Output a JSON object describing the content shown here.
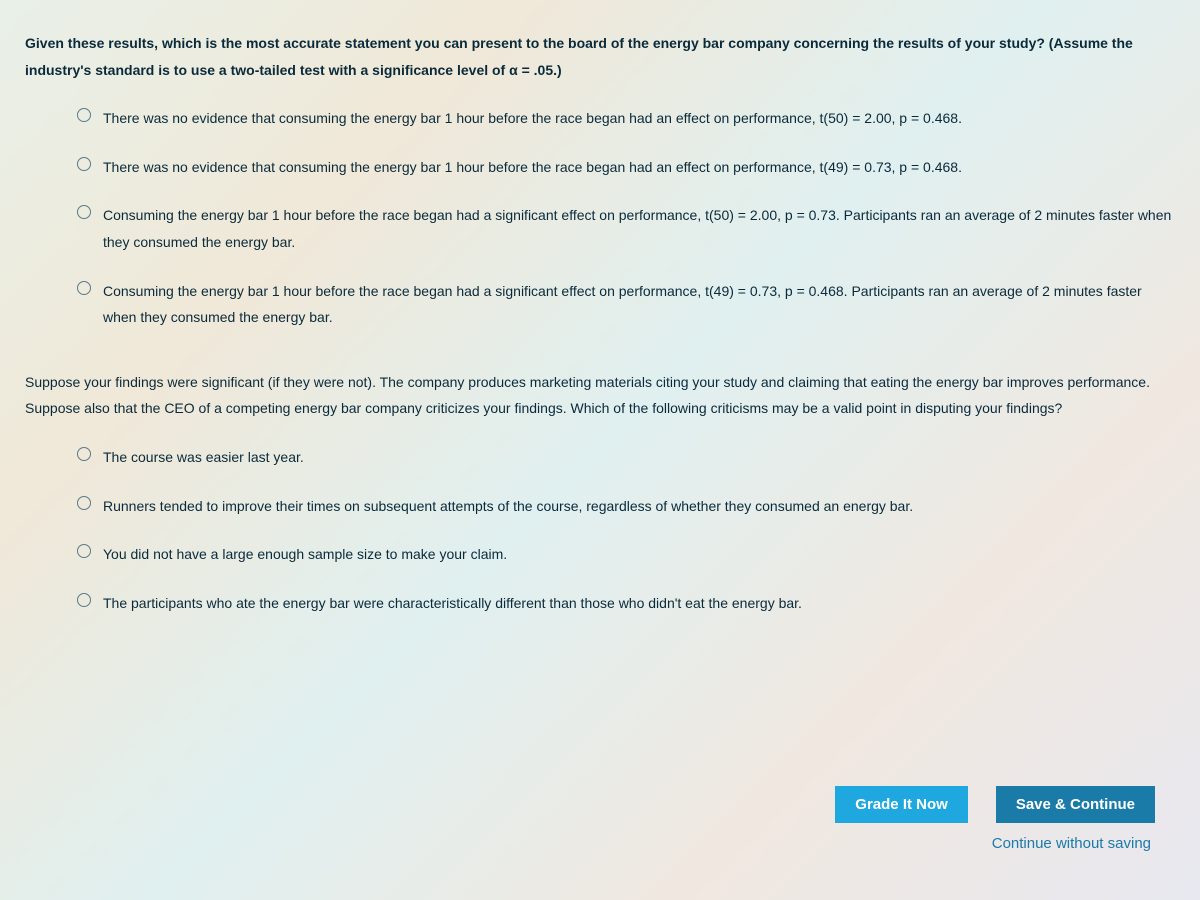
{
  "questions": [
    {
      "prompt": "Given these results, which is the most accurate statement you can present to the board of the energy bar company concerning the results of your study? (Assume the industry's standard is to use a two-tailed test with a significance level of α = .05.)",
      "options": [
        "There was no evidence that consuming the energy bar 1 hour before the race began had an effect on performance, t(50) = 2.00, p = 0.468.",
        "There was no evidence that consuming the energy bar 1 hour before the race began had an effect on performance, t(49) = 0.73, p = 0.468.",
        "Consuming the energy bar 1 hour before the race began had a significant effect on performance, t(50) = 2.00, p = 0.73. Participants ran an average of 2 minutes faster when they consumed the energy bar.",
        "Consuming the energy bar 1 hour before the race began had a significant effect on performance, t(49) = 0.73, p = 0.468. Participants ran an average of 2 minutes faster when they consumed the energy bar."
      ]
    },
    {
      "prompt": "Suppose your findings were significant (if they were not). The company produces marketing materials citing your study and claiming that eating the energy bar improves performance. Suppose also that the CEO of a competing energy bar company criticizes your findings. Which of the following criticisms may be a valid point in disputing your findings?",
      "options": [
        "The course was easier last year.",
        "Runners tended to improve their times on subsequent attempts of the course, regardless of whether they consumed an energy bar.",
        "You did not have a large enough sample size to make your claim.",
        "The participants who ate the energy bar were characteristically different than those who didn't eat the energy bar."
      ]
    }
  ],
  "buttons": {
    "grade": "Grade It Now",
    "save": "Save & Continue",
    "continue_link": "Continue without saving"
  },
  "colors": {
    "text": "#0a2a3a",
    "btn_primary": "#1fa8e0",
    "btn_secondary": "#1a7aa8",
    "link": "#1a7aa8"
  }
}
